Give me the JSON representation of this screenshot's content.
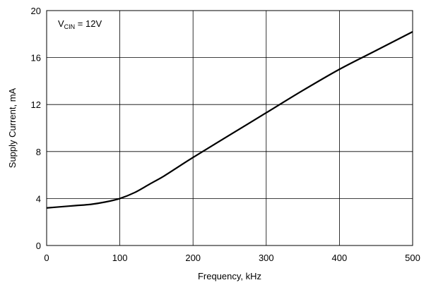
{
  "chart_data": {
    "type": "line",
    "xlabel": "Frequency, kHz",
    "ylabel": "Supply Current, mA",
    "xlim": [
      0,
      500
    ],
    "ylim": [
      0,
      20
    ],
    "xticks": [
      "0",
      "100",
      "200",
      "300",
      "400",
      "500"
    ],
    "yticks": [
      "0",
      "4",
      "8",
      "12",
      "16",
      "20"
    ],
    "grid": true,
    "annotation": {
      "main": "V",
      "sub": "CIN",
      "rest": " = 12V"
    },
    "series": [
      {
        "x": [
          0,
          20,
          40,
          60,
          80,
          100,
          120,
          140,
          160,
          180,
          200,
          250,
          300,
          350,
          400,
          450,
          500
        ],
        "y": [
          3.2,
          3.3,
          3.4,
          3.5,
          3.7,
          4.0,
          4.5,
          5.2,
          5.9,
          6.7,
          7.5,
          9.4,
          11.3,
          13.2,
          15.0,
          16.6,
          18.2
        ],
        "color": "#000000"
      }
    ]
  }
}
